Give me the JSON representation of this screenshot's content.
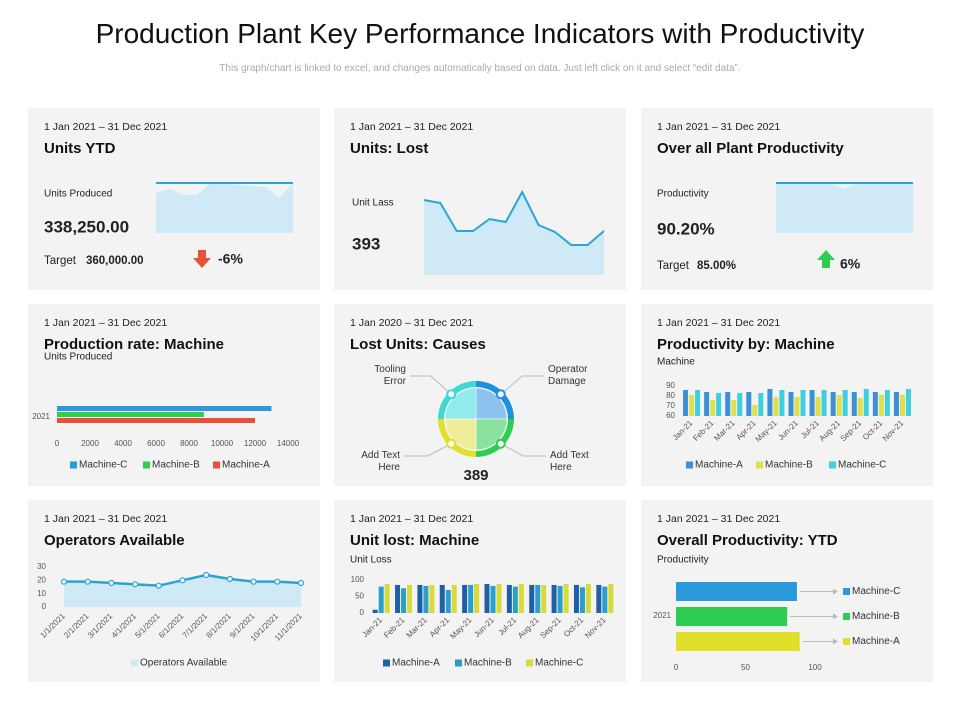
{
  "title": "Production Plant Key Performance Indicators with Productivity",
  "subtitle": "This graph/chart is linked to excel, and changes automatically based on data. Just left click on it and select “edit data”.",
  "chart_data": [
    {
      "type": "kpi_area",
      "date": "1 Jan 2021 – 31 Dec 2021",
      "title": "Units YTD",
      "metric_label": "Units Produced",
      "metric": "338,250.00",
      "target_label": "Target",
      "target": "360,000.00",
      "change": "-6%",
      "arrow": "down",
      "arrow_color": "#e8503a",
      "color": "#2aa5d8",
      "area_color": "#cfe9f6",
      "values": [
        40,
        44,
        38,
        38,
        50,
        50,
        48,
        47,
        46,
        35,
        50
      ],
      "line_values": [
        50,
        50,
        50,
        50,
        50,
        50,
        50,
        50,
        50,
        50,
        50
      ]
    },
    {
      "type": "line_area",
      "date": "1 Jan 2021 – 31 Dec 2021",
      "title": "Units: Lost",
      "metric_label": "Unit Lass",
      "metric": 393,
      "color": "#2aa5d8",
      "area_color": "#cfe9f6",
      "values": [
        75,
        72,
        44,
        44,
        56,
        53,
        83,
        50,
        43,
        30,
        30,
        44
      ]
    },
    {
      "type": "kpi_area",
      "date": "1 Jan 2021 – 31 Dec 2021",
      "title": "Over all Plant Productivity",
      "metric_label": "Productivity",
      "metric": "90.20%",
      "target_label": "Target",
      "target": "85.00%",
      "change": "6%",
      "arrow": "up",
      "arrow_color": "#2ecc52",
      "color": "#2aa5d8",
      "area_color": "#cfe9f6",
      "values": [
        50,
        50,
        50,
        50,
        50,
        44,
        50,
        50,
        50,
        50,
        50
      ],
      "line_values": [
        50,
        50,
        50,
        50,
        50,
        50,
        50,
        50,
        50,
        50,
        50
      ]
    },
    {
      "type": "hbar",
      "date": "1 Jan 2021 – 31 Dec 2021",
      "title": "Production rate: Machine",
      "subtitle": "Units Produced",
      "categories": [
        "2021"
      ],
      "legend": "bottom",
      "series": [
        {
          "name": "Machine-C",
          "color": "#2a9ad8",
          "values": [
            13000
          ]
        },
        {
          "name": "Machine-B",
          "color": "#2ecc52",
          "values": [
            8900
          ]
        },
        {
          "name": "Machine-A",
          "color": "#e8503a",
          "values": [
            12000
          ]
        }
      ],
      "xlim": [
        0,
        14000
      ],
      "xticks": [
        0,
        2000,
        4000,
        6000,
        8000,
        10000,
        12000,
        14000
      ]
    },
    {
      "type": "pie",
      "date": "1 Jan 2020 – 31 Dec 2021",
      "title": "Lost Units: Causes",
      "total": 389,
      "categories": [
        "Operator Damage",
        "Add Text Here",
        "Add Text Here",
        "Tooling Error"
      ],
      "values": [
        25,
        25,
        25,
        25
      ],
      "colors": [
        "#1f8fe0",
        "#2ecc52",
        "#e0e02a",
        "#3fd8d8"
      ],
      "inner_colors": [
        "#8cc4ef",
        "#8be2a0",
        "#eeee9a",
        "#92eaea"
      ]
    },
    {
      "type": "vbar",
      "date": "1 Jan 2021 – 31 Dec 2021",
      "title": "Productivity by: Machine",
      "subtitle": "Machine",
      "categories": [
        "Jan-21",
        "Feb-21",
        "Mar-21",
        "Apr-21",
        "May-21",
        "Jun-21",
        "Jul-21",
        "Aug-21",
        "Sep-21",
        "Oct-21",
        "Nov-21"
      ],
      "series": [
        {
          "name": "Machine-A",
          "color": "#3d8fd8",
          "values": [
            86,
            84,
            84,
            84,
            87,
            84,
            86,
            84,
            84,
            84,
            84
          ]
        },
        {
          "name": "Machine-B",
          "color": "#e0e04a",
          "values": [
            81,
            76,
            76,
            71,
            79,
            79,
            79,
            81,
            78,
            81,
            81
          ]
        },
        {
          "name": "Machine-C",
          "color": "#3fd0e0",
          "values": [
            86,
            83,
            83,
            83,
            86,
            86,
            86,
            86,
            87,
            86,
            87
          ]
        }
      ],
      "ylim": [
        60,
        90
      ],
      "yticks": [
        60,
        70,
        80,
        90
      ]
    },
    {
      "type": "line_markers",
      "date": "1 Jan 2021 – 31 Dec 2021",
      "title": "Operators Available",
      "categories": [
        "1/1/2021",
        "2/1/2021",
        "3/1/2021",
        "4/1/2021",
        "5/1/2021",
        "6/1/2021",
        "7/1/2021",
        "8/1/2021",
        "9/1/2021",
        "10/1/2021",
        "11/1/2021"
      ],
      "series": [
        {
          "name": "Operators Available",
          "color": "#2ba3d6",
          "area_color": "#cfe9f6",
          "values": [
            19,
            19,
            18,
            17,
            16,
            20,
            24,
            21,
            19,
            19,
            18
          ]
        }
      ],
      "ylim": [
        0,
        30
      ],
      "yticks": [
        0,
        10,
        20,
        30
      ]
    },
    {
      "type": "vbar",
      "date": "1 Jan 2021 – 31 Dec 2021",
      "title": "Unit lost: Machine",
      "subtitle": "Unit Loss",
      "categories": [
        "Jan-21",
        "Feb-21",
        "Mar-21",
        "Apr-21",
        "May-21",
        "Jun-21",
        "Jul-21",
        "Aug-21",
        "Sep-21",
        "Oct-21",
        "Nov-21"
      ],
      "series": [
        {
          "name": "Machine-A",
          "color": "#1f5fa8",
          "values": [
            10,
            85,
            85,
            85,
            85,
            88,
            85,
            85,
            85,
            85,
            85
          ]
        },
        {
          "name": "Machine-B",
          "color": "#2aa0c8",
          "values": [
            80,
            75,
            82,
            70,
            85,
            82,
            80,
            85,
            82,
            78,
            80
          ]
        },
        {
          "name": "Machine-C",
          "color": "#d9d93a",
          "values": [
            88,
            85,
            85,
            85,
            88,
            88,
            88,
            85,
            88,
            88,
            88
          ]
        }
      ],
      "ylim": [
        0,
        100
      ],
      "yticks": [
        0,
        50,
        100
      ]
    },
    {
      "type": "hbar",
      "date": "1 Jan 2021 – 31 Dec 2021",
      "title": "Overall Productivity: YTD",
      "subtitle": "Productivity",
      "categories": [
        "2021"
      ],
      "legend": "right",
      "series": [
        {
          "name": "Machine-C",
          "color": "#2a9ad8",
          "values": [
            87
          ]
        },
        {
          "name": "Machine-B",
          "color": "#2ecc52",
          "values": [
            80
          ]
        },
        {
          "name": "Machine-A",
          "color": "#e0e02a",
          "values": [
            89
          ]
        }
      ],
      "xlim": [
        0,
        100
      ],
      "xticks": [
        0,
        50,
        100
      ]
    }
  ]
}
